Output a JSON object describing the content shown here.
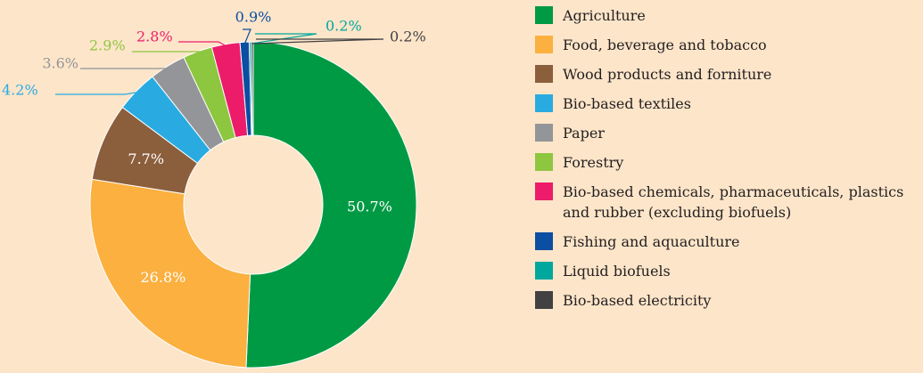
{
  "chart_data": {
    "type": "donut",
    "categories": [
      "Agriculture",
      "Food, beverage and tobacco",
      "Wood products and forniture",
      "Bio-based textiles",
      "Paper",
      "Forestry",
      "Bio-based chemicals, pharmaceuticals, plastics and rubber (excluding biofuels)",
      "Fishing and aquaculture",
      "Liquid biofuels",
      "Bio-based electricity"
    ],
    "values": [
      50.7,
      26.8,
      7.7,
      4.2,
      3.6,
      2.9,
      2.8,
      0.9,
      0.2,
      0.2
    ],
    "value_labels": [
      "50.7%",
      "26.8%",
      "7.7%",
      "4.2%",
      "3.6%",
      "2.9%",
      "2.8%",
      "0.9%",
      "0.2%",
      "0.2%"
    ],
    "colors": [
      "#009a44",
      "#fbb040",
      "#8b5e3c",
      "#29abe2",
      "#939598",
      "#8dc63f",
      "#ec1c6a",
      "#0b4ea2",
      "#00a79d",
      "#414042"
    ],
    "legend": "right"
  }
}
